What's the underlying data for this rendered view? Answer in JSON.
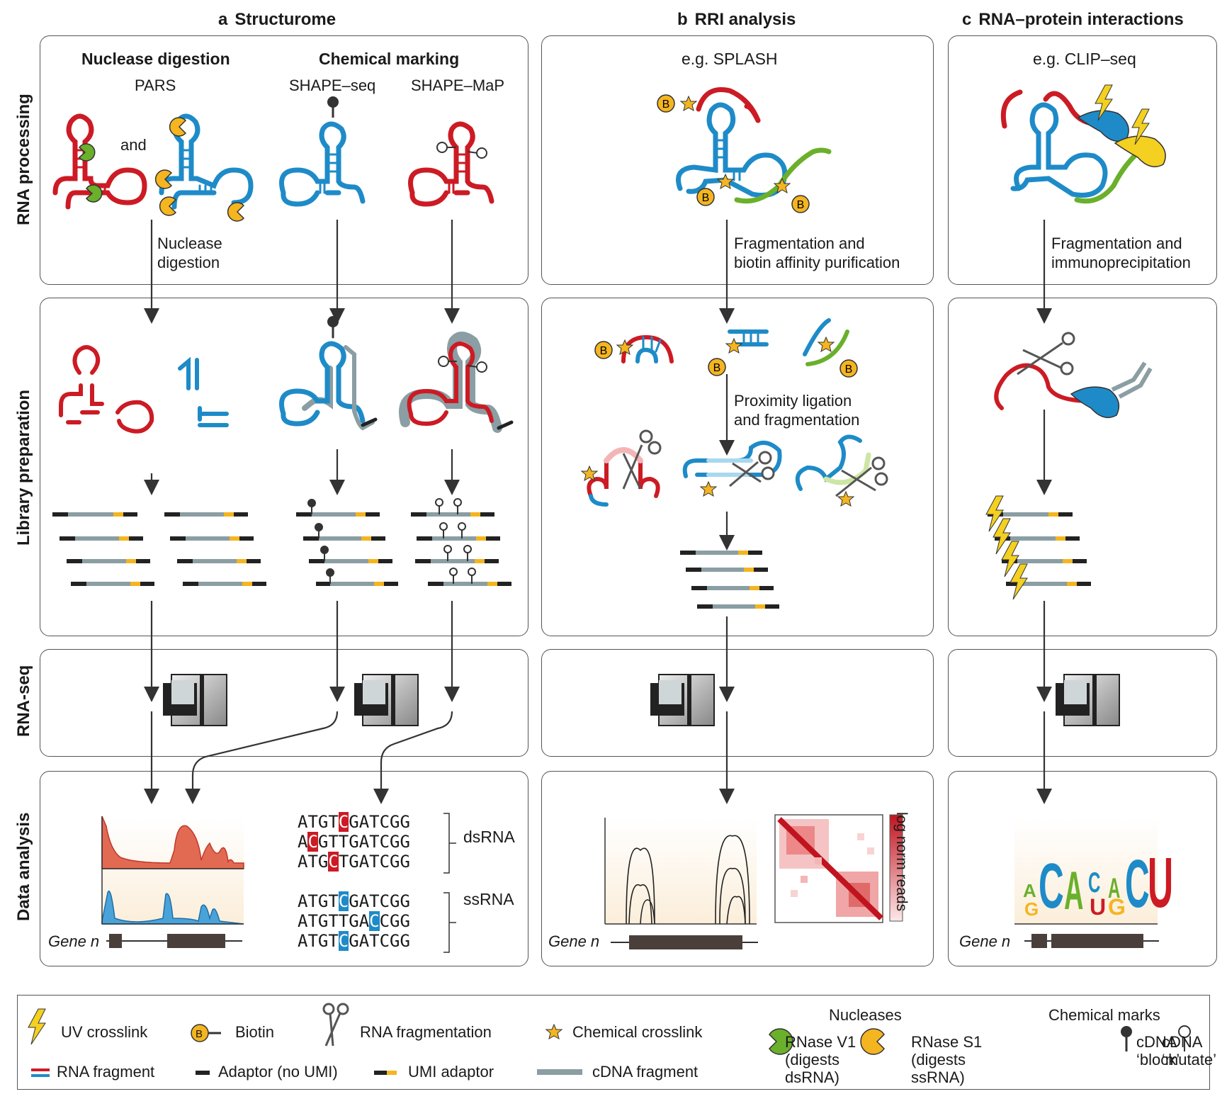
{
  "columns": {
    "a": {
      "letter": "a",
      "title": "Structurome"
    },
    "b": {
      "letter": "b",
      "title": "RRI analysis"
    },
    "c": {
      "letter": "c",
      "title": "RNA–protein interactions"
    }
  },
  "rows": [
    "RNA processing",
    "Library preparation",
    "RNA-seq",
    "Data analysis"
  ],
  "structurome": {
    "nuclease_heading": "Nuclease digestion",
    "chemical_heading": "Chemical marking",
    "pars": "PARS",
    "and": "and",
    "shape_seq": "SHAPE–seq",
    "shape_map": "SHAPE–MaP",
    "step1": "Nuclease\ndigestion",
    "gene_label": "Gene n",
    "seqs_ds": [
      "ATGTCGATCGG",
      "ACGTTGATCGG",
      "ATGCTGATCGG"
    ],
    "seqs_ss": [
      "ATGTCGATCGG",
      "ATGTTGACCGG",
      "ATGTCGATCGG"
    ],
    "ds_label": "dsRNA",
    "ss_label": "ssRNA"
  },
  "rri": {
    "example": "e.g. SPLASH",
    "step1": "Fragmentation and\nbiotin affinity purification",
    "step2": "Proximity ligation\nand fragmentation",
    "gene_label": "Gene n",
    "heatmap_label": "log norm reads"
  },
  "clip": {
    "example": "e.g. CLIP–seq",
    "step1": "Fragmentation and\nimmunoprecipitation",
    "gene_label": "Gene n",
    "motif": [
      "A",
      "C",
      "A",
      "C",
      "A",
      "C",
      "U"
    ],
    "motif_low": [
      "G",
      "",
      "U",
      "G"
    ]
  },
  "legend": {
    "uv": "UV crosslink",
    "biotin": "Biotin",
    "biotin_mark": "B",
    "frag": "RNA fragmentation",
    "chem": "Chemical crosslink",
    "nucleases": "Nucleases",
    "v1": "RNase V1\n(digests\ndsRNA)",
    "s1": "RNase S1\n(digests\nssRNA)",
    "chem_marks": "Chemical marks",
    "block": "cDNA\n‘block’",
    "mutate": "cDNA\n‘mutate’",
    "rna_frag": "RNA fragment",
    "adaptor": "Adaptor (no UMI)",
    "umi": "UMI adaptor",
    "cdna": "cDNA fragment"
  },
  "colors": {
    "red": "#cc1b24",
    "blue": "#1e8bc8",
    "green": "#7ab32a",
    "yellow": "#f4b520",
    "gray": "#8a9ea3",
    "dark": "#333"
  }
}
